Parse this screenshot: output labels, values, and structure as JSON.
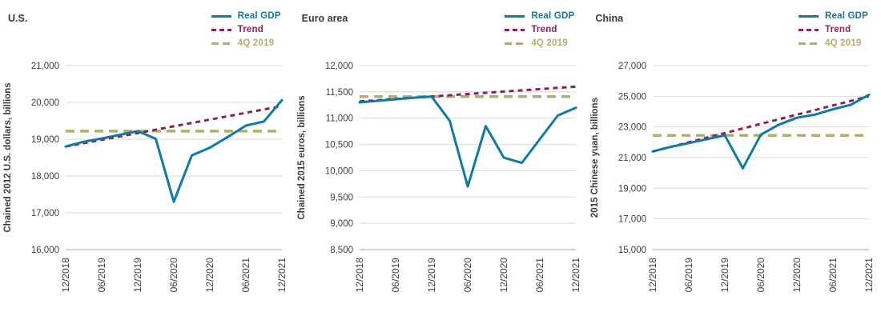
{
  "colors": {
    "real_gdp": "#0f7aa5",
    "trend": "#8e2158",
    "ref_4q2019": "#b1b06b",
    "grid": "#d8d8d8",
    "axis_bottom": "#a8a3b0",
    "text": "#3b3b3b"
  },
  "chart_data": [
    {
      "type": "line",
      "title": "U.S.",
      "ylabel": "Chained 2012 U.S. dollars, billions",
      "ylim": [
        16000,
        21000
      ],
      "y_ticks": [
        "16,000",
        "17,000",
        "18,000",
        "19,000",
        "20,000",
        "21,000"
      ],
      "x_tick_labels": [
        "12/2018",
        "06/2019",
        "12/2019",
        "06/2020",
        "12/2020",
        "06/2021",
        "12/2021"
      ],
      "x_tick_indices": [
        0,
        2,
        4,
        6,
        8,
        10,
        12
      ],
      "grid": "horizontal",
      "legend_position": "top-right",
      "series": [
        {
          "name": "Real GDP",
          "style": "solid",
          "color": "#0f7aa5",
          "values": [
            18800,
            18930,
            19020,
            19120,
            19220,
            19010,
            17300,
            18560,
            18770,
            19060,
            19370,
            19480,
            20060
          ]
        },
        {
          "name": "Trend",
          "style": "dashed",
          "color": "#8e2158",
          "values": [
            18800,
            18892,
            18983,
            19075,
            19167,
            19258,
            19350,
            19442,
            19533,
            19625,
            19717,
            19808,
            19900
          ]
        },
        {
          "name": "4Q 2019",
          "style": "dashed-long",
          "color": "#b1b06b",
          "ref_value": 19220
        }
      ]
    },
    {
      "type": "line",
      "title": "Euro area",
      "ylabel": "Chained 2015 euros, billions",
      "ylim": [
        8500,
        12000
      ],
      "y_ticks": [
        "8,500",
        "9,000",
        "9,500",
        "10,000",
        "10,500",
        "11,000",
        "11,500",
        "12,000"
      ],
      "x_tick_labels": [
        "12/2018",
        "06/2019",
        "12/2019",
        "06/2020",
        "12/2020",
        "06/2021",
        "12/2021"
      ],
      "x_tick_indices": [
        0,
        2,
        4,
        6,
        8,
        10,
        12
      ],
      "grid": "horizontal",
      "legend_position": "top-right",
      "series": [
        {
          "name": "Real GDP",
          "style": "solid",
          "color": "#0f7aa5",
          "values": [
            11300,
            11330,
            11360,
            11390,
            11410,
            10950,
            9700,
            10850,
            10250,
            10150,
            10600,
            11050,
            11200
          ]
        },
        {
          "name": "Trend",
          "style": "dashed",
          "color": "#8e2158",
          "values": [
            11320,
            11343,
            11367,
            11390,
            11413,
            11437,
            11460,
            11483,
            11507,
            11530,
            11553,
            11577,
            11600
          ]
        },
        {
          "name": "4Q 2019",
          "style": "dashed-long",
          "color": "#b1b06b",
          "ref_value": 11410
        }
      ]
    },
    {
      "type": "line",
      "title": "China",
      "ylabel": "2015 Chinese yuan, billions",
      "ylim": [
        15000,
        27000
      ],
      "y_ticks": [
        "15,000",
        "17,000",
        "19,000",
        "21,000",
        "23,000",
        "25,000",
        "27,000"
      ],
      "x_tick_labels": [
        "12/2018",
        "06/2019",
        "12/2019",
        "06/2020",
        "12/2020",
        "06/2021",
        "12/2021"
      ],
      "x_tick_indices": [
        0,
        2,
        4,
        6,
        8,
        10,
        12
      ],
      "grid": "horizontal",
      "legend_position": "top-right",
      "series": [
        {
          "name": "Real GDP",
          "style": "solid",
          "color": "#0f7aa5",
          "values": [
            21400,
            21700,
            21950,
            22200,
            22450,
            20300,
            22500,
            23150,
            23600,
            23800,
            24150,
            24450,
            25100
          ]
        },
        {
          "name": "Trend",
          "style": "dashed",
          "color": "#8e2158",
          "values": [
            21400,
            21700,
            22000,
            22300,
            22600,
            22900,
            23200,
            23500,
            23800,
            24100,
            24400,
            24700,
            25000
          ]
        },
        {
          "name": "4Q 2019",
          "style": "dashed-long",
          "color": "#b1b06b",
          "ref_value": 22450
        }
      ]
    }
  ]
}
